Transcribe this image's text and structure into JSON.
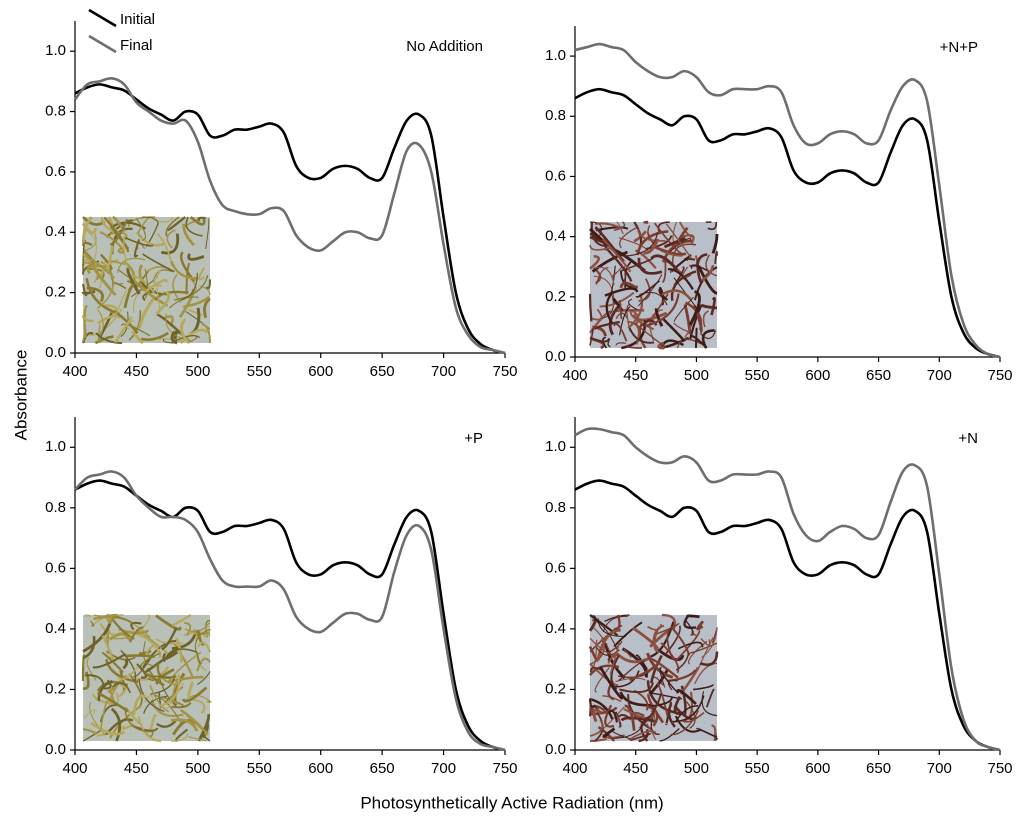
{
  "x_label": "Photosynthetically Active Radiation (nm)",
  "y_label": "Absorbance",
  "chart_data": [
    {
      "type": "line",
      "annotation": "No Addition",
      "legend": "upper left",
      "x": [
        400,
        410,
        420,
        430,
        440,
        450,
        460,
        470,
        480,
        490,
        500,
        510,
        520,
        530,
        540,
        550,
        560,
        570,
        580,
        590,
        600,
        610,
        620,
        630,
        640,
        650,
        660,
        670,
        680,
        690,
        700,
        710,
        720,
        730,
        740,
        750
      ],
      "series": [
        {
          "name": "Initial",
          "color": "#000000",
          "values": [
            0.86,
            0.88,
            0.89,
            0.88,
            0.87,
            0.84,
            0.81,
            0.79,
            0.77,
            0.8,
            0.79,
            0.72,
            0.72,
            0.74,
            0.74,
            0.75,
            0.76,
            0.73,
            0.62,
            0.58,
            0.58,
            0.61,
            0.62,
            0.61,
            0.58,
            0.58,
            0.68,
            0.77,
            0.79,
            0.72,
            0.45,
            0.2,
            0.08,
            0.03,
            0.01,
            0.0
          ]
        },
        {
          "name": "Final",
          "color": "#6e6e6e",
          "values": [
            0.84,
            0.89,
            0.9,
            0.91,
            0.89,
            0.83,
            0.8,
            0.77,
            0.76,
            0.77,
            0.7,
            0.57,
            0.49,
            0.47,
            0.46,
            0.46,
            0.48,
            0.47,
            0.39,
            0.35,
            0.34,
            0.37,
            0.4,
            0.4,
            0.38,
            0.39,
            0.53,
            0.67,
            0.69,
            0.6,
            0.36,
            0.15,
            0.06,
            0.02,
            0.01,
            0.0
          ]
        }
      ],
      "xlim": [
        400,
        750
      ],
      "xticks": [
        400,
        450,
        500,
        550,
        600,
        650,
        700,
        750
      ],
      "ylim": [
        0,
        1.1
      ],
      "yticks": [
        {
          "value": 0,
          "label": "0.0"
        },
        0.2,
        0.4,
        0.6,
        0.8,
        {
          "value": 1,
          "label": "1.0"
        }
      ]
    },
    {
      "type": "line",
      "annotation": "+N+P",
      "x": [
        400,
        410,
        420,
        430,
        440,
        450,
        460,
        470,
        480,
        490,
        500,
        510,
        520,
        530,
        540,
        550,
        560,
        570,
        580,
        590,
        600,
        610,
        620,
        630,
        640,
        650,
        660,
        670,
        680,
        690,
        700,
        710,
        720,
        730,
        740,
        750
      ],
      "series": [
        {
          "color": "#000000",
          "values": [
            0.86,
            0.88,
            0.89,
            0.88,
            0.87,
            0.84,
            0.81,
            0.79,
            0.77,
            0.8,
            0.79,
            0.72,
            0.72,
            0.74,
            0.74,
            0.75,
            0.76,
            0.73,
            0.62,
            0.58,
            0.58,
            0.61,
            0.62,
            0.61,
            0.58,
            0.58,
            0.68,
            0.77,
            0.79,
            0.72,
            0.45,
            0.2,
            0.08,
            0.03,
            0.01,
            0.0
          ]
        },
        {
          "color": "#6e6e6e",
          "values": [
            1.02,
            1.03,
            1.04,
            1.03,
            1.02,
            0.98,
            0.95,
            0.93,
            0.93,
            0.95,
            0.93,
            0.88,
            0.87,
            0.89,
            0.89,
            0.89,
            0.9,
            0.88,
            0.77,
            0.71,
            0.71,
            0.74,
            0.75,
            0.74,
            0.71,
            0.72,
            0.82,
            0.9,
            0.92,
            0.85,
            0.57,
            0.27,
            0.11,
            0.04,
            0.01,
            0.0
          ]
        }
      ],
      "xlim": [
        400,
        750
      ],
      "xticks": [
        400,
        450,
        500,
        550,
        600,
        650,
        700,
        750
      ],
      "ylim": [
        0,
        1.1
      ],
      "yticks": [
        {
          "value": 0,
          "label": "0.0"
        },
        0.2,
        0.4,
        0.6,
        0.8,
        {
          "value": 1,
          "label": "1.0"
        }
      ]
    },
    {
      "type": "line",
      "annotation": "+P",
      "x": [
        400,
        410,
        420,
        430,
        440,
        450,
        460,
        470,
        480,
        490,
        500,
        510,
        520,
        530,
        540,
        550,
        560,
        570,
        580,
        590,
        600,
        610,
        620,
        630,
        640,
        650,
        660,
        670,
        680,
        690,
        700,
        710,
        720,
        730,
        740,
        750
      ],
      "series": [
        {
          "color": "#000000",
          "values": [
            0.86,
            0.88,
            0.89,
            0.88,
            0.87,
            0.84,
            0.81,
            0.79,
            0.77,
            0.8,
            0.79,
            0.72,
            0.72,
            0.74,
            0.74,
            0.75,
            0.76,
            0.73,
            0.62,
            0.58,
            0.58,
            0.61,
            0.62,
            0.61,
            0.58,
            0.58,
            0.68,
            0.77,
            0.79,
            0.72,
            0.45,
            0.2,
            0.08,
            0.03,
            0.01,
            0.0
          ]
        },
        {
          "color": "#6e6e6e",
          "values": [
            0.86,
            0.9,
            0.91,
            0.92,
            0.9,
            0.84,
            0.8,
            0.77,
            0.77,
            0.76,
            0.72,
            0.63,
            0.56,
            0.54,
            0.54,
            0.54,
            0.56,
            0.53,
            0.44,
            0.4,
            0.39,
            0.42,
            0.45,
            0.45,
            0.43,
            0.44,
            0.59,
            0.71,
            0.74,
            0.66,
            0.4,
            0.17,
            0.06,
            0.02,
            0.01,
            0.0
          ]
        }
      ],
      "xlim": [
        400,
        750
      ],
      "xticks": [
        400,
        450,
        500,
        550,
        600,
        650,
        700,
        750
      ],
      "ylim": [
        0,
        1.1
      ],
      "yticks": [
        {
          "value": 0,
          "label": "0.0"
        },
        0.2,
        0.4,
        0.6,
        0.8,
        {
          "value": 1,
          "label": "1.0"
        }
      ]
    },
    {
      "type": "line",
      "annotation": "+N",
      "x": [
        400,
        410,
        420,
        430,
        440,
        450,
        460,
        470,
        480,
        490,
        500,
        510,
        520,
        530,
        540,
        550,
        560,
        570,
        580,
        590,
        600,
        610,
        620,
        630,
        640,
        650,
        660,
        670,
        680,
        690,
        700,
        710,
        720,
        730,
        740,
        750
      ],
      "series": [
        {
          "color": "#000000",
          "values": [
            0.86,
            0.88,
            0.89,
            0.88,
            0.87,
            0.84,
            0.81,
            0.79,
            0.77,
            0.8,
            0.79,
            0.72,
            0.72,
            0.74,
            0.74,
            0.75,
            0.76,
            0.73,
            0.62,
            0.58,
            0.58,
            0.61,
            0.62,
            0.61,
            0.58,
            0.58,
            0.68,
            0.77,
            0.79,
            0.72,
            0.45,
            0.2,
            0.08,
            0.03,
            0.01,
            0.0
          ]
        },
        {
          "color": "#6e6e6e",
          "values": [
            1.04,
            1.06,
            1.06,
            1.05,
            1.04,
            1.0,
            0.97,
            0.95,
            0.95,
            0.97,
            0.95,
            0.89,
            0.89,
            0.91,
            0.91,
            0.91,
            0.92,
            0.9,
            0.78,
            0.71,
            0.69,
            0.72,
            0.74,
            0.73,
            0.7,
            0.71,
            0.82,
            0.92,
            0.94,
            0.87,
            0.58,
            0.27,
            0.1,
            0.03,
            0.01,
            0.0
          ]
        }
      ],
      "xlim": [
        400,
        750
      ],
      "xticks": [
        400,
        450,
        500,
        550,
        600,
        650,
        700,
        750
      ],
      "ylim": [
        0,
        1.1
      ],
      "yticks": [
        {
          "value": 0,
          "label": "0.0"
        },
        0.2,
        0.4,
        0.6,
        0.8,
        {
          "value": 1,
          "label": "1.0"
        }
      ]
    }
  ]
}
